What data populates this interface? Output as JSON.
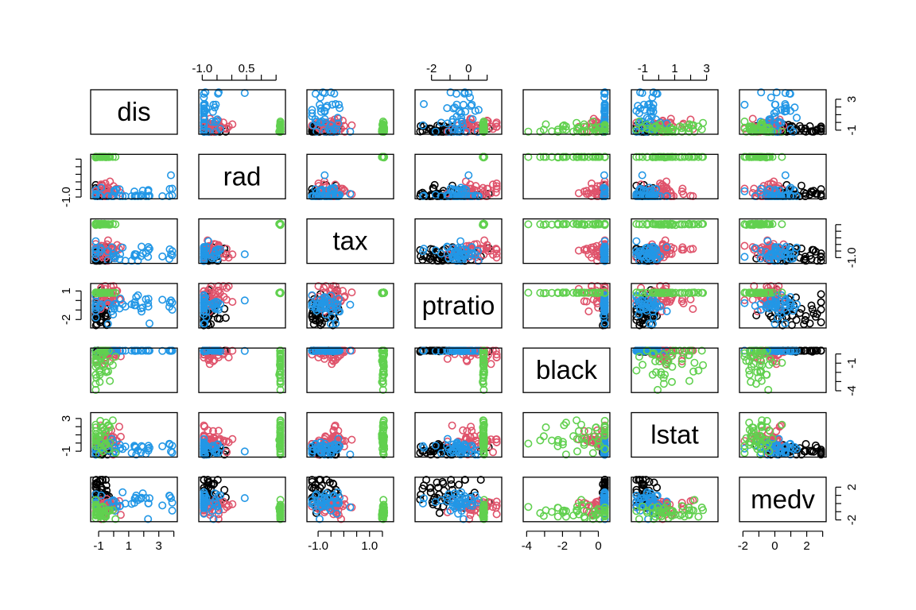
{
  "chart_data": {
    "type": "scatter",
    "title": "",
    "variables": [
      "dis",
      "rad",
      "tax",
      "ptratio",
      "black",
      "lstat",
      "medv"
    ],
    "groups": [
      {
        "color": "#000000"
      },
      {
        "color": "#DF536B"
      },
      {
        "color": "#2297E6"
      },
      {
        "color": "#61D04F"
      }
    ],
    "ranges": {
      "dis": [
        -1.3,
        4.0
      ],
      "rad": [
        -1.0,
        1.7
      ],
      "tax": [
        -1.3,
        1.8
      ],
      "ptratio": [
        -2.7,
        1.6
      ],
      "black": [
        -4.0,
        0.45
      ],
      "lstat": [
        -1.5,
        3.5
      ],
      "medv": [
        -2.0,
        3.0
      ]
    },
    "axes": {
      "top": [
        {
          "var": "rad",
          "ticks": [
            -1.0,
            -0.5,
            0.0,
            0.5,
            1.0,
            1.5
          ],
          "labels": [
            "-1.0",
            "",
            "",
            "0.5",
            "",
            ""
          ]
        },
        {
          "var": "ptratio",
          "ticks": [
            -2,
            -1,
            0,
            1
          ],
          "labels": [
            "-2",
            "",
            "0",
            ""
          ]
        },
        {
          "var": "lstat",
          "ticks": [
            -1,
            0,
            1,
            2,
            3
          ],
          "labels": [
            "-1",
            "",
            "1",
            "",
            "3"
          ]
        }
      ],
      "bottom": [
        {
          "var": "dis",
          "ticks": [
            -1,
            0,
            1,
            2,
            3,
            4
          ],
          "labels": [
            "-1",
            "",
            "1",
            "",
            "3",
            ""
          ]
        },
        {
          "var": "tax",
          "ticks": [
            -1.0,
            -0.5,
            0.0,
            0.5,
            1.0,
            1.5
          ],
          "labels": [
            "-1.0",
            "",
            "",
            "",
            "1.0",
            ""
          ]
        },
        {
          "var": "black",
          "ticks": [
            -4,
            -3,
            -2,
            -1,
            0
          ],
          "labels": [
            "-4",
            "",
            "-2",
            "",
            "0"
          ]
        },
        {
          "var": "medv",
          "ticks": [
            -2,
            -1,
            0,
            1,
            2,
            3
          ],
          "labels": [
            "-2",
            "",
            "0",
            "",
            "2",
            ""
          ]
        }
      ],
      "left": [
        {
          "var": "rad",
          "ticks": [
            -1.0,
            -0.5,
            0.0,
            0.5,
            1.0,
            1.5
          ],
          "labels": [
            "-1.0",
            "",
            "",
            "",
            "",
            ""
          ]
        },
        {
          "var": "ptratio",
          "ticks": [
            -2,
            -1,
            0,
            1
          ],
          "labels": [
            "-2",
            "",
            "",
            "1"
          ]
        },
        {
          "var": "lstat",
          "ticks": [
            -1,
            0,
            1,
            2,
            3
          ],
          "labels": [
            "-1",
            "",
            "",
            "",
            "3"
          ]
        }
      ],
      "right": [
        {
          "var": "dis",
          "ticks": [
            -1,
            0,
            1,
            2,
            3
          ],
          "labels": [
            "-1",
            "",
            "",
            "",
            "3"
          ]
        },
        {
          "var": "tax",
          "ticks": [
            -1.0,
            -0.5,
            0.0,
            0.5,
            1.0,
            1.5
          ],
          "labels": [
            "-1.0",
            "",
            "",
            "",
            "",
            ""
          ]
        },
        {
          "var": "black",
          "ticks": [
            -4,
            -3,
            -2,
            -1,
            0
          ],
          "labels": [
            "-4",
            "",
            "",
            "-1",
            ""
          ]
        },
        {
          "var": "medv",
          "ticks": [
            -2,
            -1,
            0,
            1,
            2
          ],
          "labels": [
            "-2",
            "",
            "",
            "",
            "2"
          ]
        }
      ]
    },
    "clusters": {
      "dis": [
        [
          -0.9,
          0.4
        ],
        [
          -0.5,
          0.5
        ],
        [
          0.8,
          1.6
        ],
        [
          -0.9,
          0.5
        ]
      ],
      "rad": [
        [
          -0.8,
          0.3
        ],
        [
          -0.8,
          0.4
        ],
        [
          -0.85,
          0.4
        ],
        [
          1.66,
          0.02
        ]
      ],
      "tax": [
        [
          -0.8,
          0.35
        ],
        [
          -0.4,
          0.4
        ],
        [
          -0.7,
          0.35
        ],
        [
          1.53,
          0.02
        ]
      ],
      "ptratio": [
        [
          -1.0,
          1.0
        ],
        [
          0.3,
          0.6
        ],
        [
          -0.4,
          0.8
        ],
        [
          0.81,
          0.02
        ]
      ],
      "black": [
        [
          0.38,
          0.08
        ],
        [
          0.2,
          0.6
        ],
        [
          0.4,
          0.06
        ],
        [
          -0.6,
          1.5
        ]
      ],
      "lstat": [
        [
          -1.0,
          0.4
        ],
        [
          0.5,
          0.9
        ],
        [
          -0.6,
          0.5
        ],
        [
          0.8,
          1.1
        ]
      ],
      "medv": [
        [
          1.2,
          1.1
        ],
        [
          -0.4,
          0.6
        ],
        [
          0.2,
          0.7
        ],
        [
          -1.0,
          0.5
        ]
      ]
    },
    "points_per_group": 42
  }
}
